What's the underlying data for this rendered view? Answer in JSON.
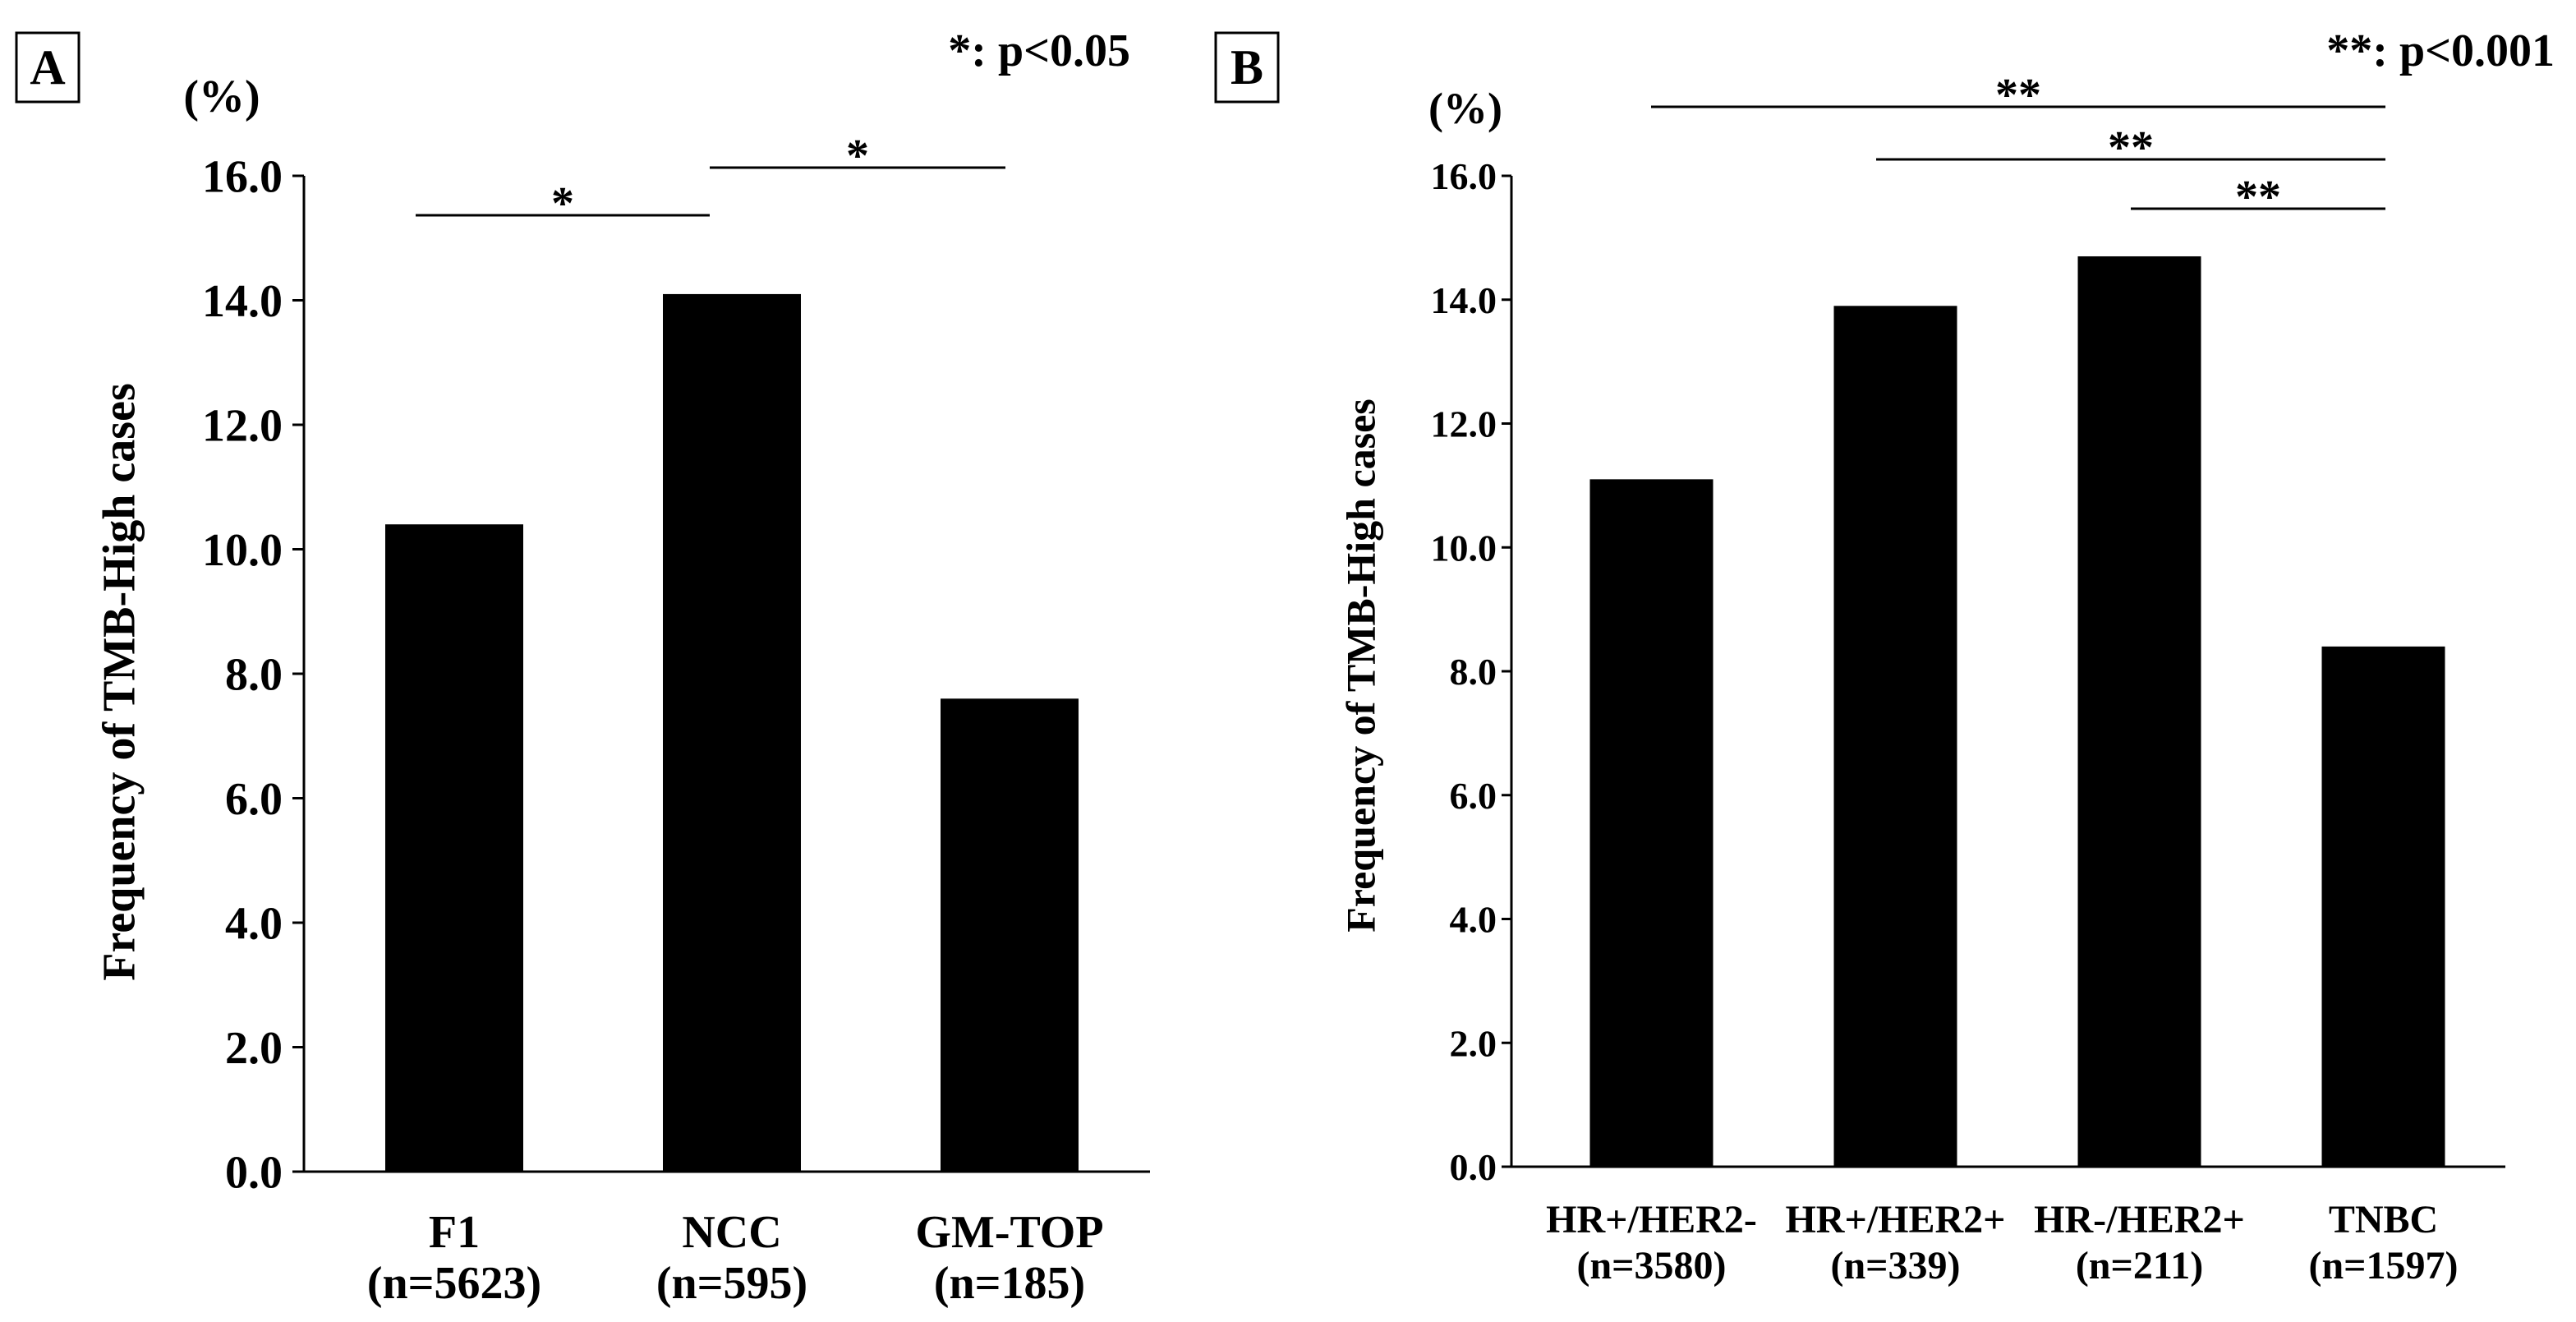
{
  "chart_data": [
    {
      "panel_label": "A",
      "type": "bar",
      "title": "",
      "xlabel": "",
      "ylabel": "Frequency of TMB-High cases",
      "yunit": "(%)",
      "categories": [
        "F1",
        "NCC",
        "GM-TOP"
      ],
      "category_counts": [
        "(n=5623)",
        "(n=595)",
        "(n=185)"
      ],
      "values": [
        10.4,
        14.1,
        7.6
      ],
      "ylim": [
        0,
        16
      ],
      "yticks": [
        0,
        2,
        4,
        6,
        8,
        10,
        12,
        14,
        16
      ],
      "ytick_labels": [
        "0.0",
        "2.0",
        "4.0",
        "6.0",
        "8.0",
        "10.0",
        "12.0",
        "14.0",
        "16.0"
      ],
      "significance_note": "*: p<0.05",
      "significance": [
        {
          "from": 0,
          "to": 1,
          "label": "*"
        },
        {
          "from": 1,
          "to": 2,
          "label": "*"
        }
      ],
      "grid": false,
      "bar_color": "#000000"
    },
    {
      "panel_label": "B",
      "type": "bar",
      "title": "",
      "xlabel": "",
      "ylabel": "Frequency of TMB-High cases",
      "yunit": "(%)",
      "categories": [
        "HR+/HER2-",
        "HR+/HER2+",
        "HR-/HER2+",
        "TNBC"
      ],
      "category_counts": [
        "(n=3580)",
        "(n=339)",
        "(n=211)",
        "(n=1597)"
      ],
      "values": [
        11.1,
        13.9,
        14.7,
        8.4
      ],
      "ylim": [
        0,
        16
      ],
      "yticks": [
        0,
        2,
        4,
        6,
        8,
        10,
        12,
        14,
        16
      ],
      "ytick_labels": [
        "0.0",
        "2.0",
        "4.0",
        "6.0",
        "8.0",
        "10.0",
        "12.0",
        "14.0",
        "16.0"
      ],
      "significance_note": "**: p<0.001",
      "significance": [
        {
          "from": 0,
          "to": 3,
          "label": "**"
        },
        {
          "from": 1,
          "to": 3,
          "label": "**"
        },
        {
          "from": 2,
          "to": 3,
          "label": "**"
        }
      ],
      "grid": false,
      "bar_color": "#000000"
    }
  ]
}
